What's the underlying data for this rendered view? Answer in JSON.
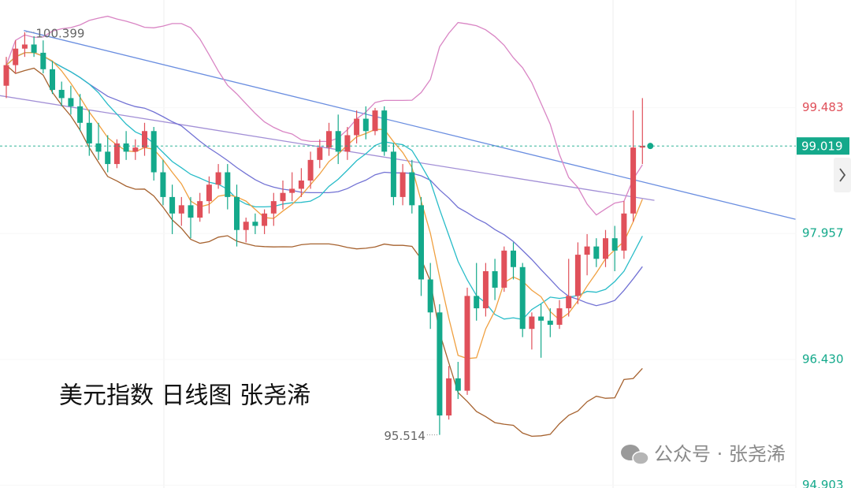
{
  "chart_data": {
    "type": "candlestick",
    "title": "美元指数 日线图 张尧浠",
    "watermark": "公众号 · 张尧浠",
    "open": [
      99.75,
      100.0,
      100.2,
      100.25,
      100.15,
      99.95,
      99.7,
      99.6,
      99.5,
      99.3,
      99.05,
      98.95,
      98.8,
      99.05,
      98.95,
      99.0,
      99.2,
      98.7,
      98.4,
      98.2,
      98.3,
      98.15,
      98.35,
      98.55,
      98.7,
      98.4,
      98.0,
      98.1,
      98.05,
      98.2,
      98.35,
      98.45,
      98.5,
      98.6,
      98.85,
      99.0,
      99.2,
      98.95,
      99.15,
      99.35,
      99.2,
      99.45,
      98.95,
      98.4,
      98.7,
      98.3,
      97.4,
      97.0,
      95.75,
      96.2,
      96.05,
      97.2,
      97.05,
      97.5,
      97.3,
      97.75,
      97.55,
      96.8,
      96.95,
      96.9,
      96.85,
      97.05,
      97.2,
      97.7,
      97.8,
      97.65,
      97.9,
      97.75,
      98.2,
      99.0
    ],
    "high": [
      100.1,
      100.3,
      100.399,
      100.35,
      100.3,
      100.05,
      99.8,
      99.75,
      99.65,
      99.45,
      99.3,
      99.15,
      99.1,
      99.2,
      99.1,
      99.3,
      99.25,
      98.85,
      98.55,
      98.4,
      98.4,
      98.45,
      98.65,
      98.8,
      98.8,
      98.55,
      98.15,
      98.2,
      98.25,
      98.45,
      98.6,
      98.7,
      98.75,
      98.95,
      99.1,
      99.3,
      99.4,
      99.25,
      99.45,
      99.5,
      99.48,
      99.5,
      99.05,
      98.8,
      98.85,
      98.4,
      97.6,
      97.1,
      96.35,
      96.4,
      97.3,
      97.6,
      97.6,
      97.65,
      97.8,
      97.85,
      97.6,
      97.0,
      97.1,
      97.05,
      97.15,
      97.65,
      97.85,
      97.95,
      97.9,
      98.0,
      98.05,
      98.35,
      99.45,
      99.6
    ],
    "low": [
      99.6,
      99.9,
      100.1,
      100.1,
      99.9,
      99.65,
      99.5,
      99.4,
      99.2,
      98.9,
      98.85,
      98.7,
      98.75,
      98.85,
      98.85,
      98.9,
      98.6,
      98.3,
      97.95,
      98.05,
      97.9,
      98.1,
      98.2,
      98.5,
      98.25,
      97.8,
      97.85,
      97.95,
      97.95,
      98.05,
      98.25,
      98.35,
      98.4,
      98.5,
      98.75,
      98.9,
      98.8,
      98.85,
      99.05,
      99.1,
      99.15,
      98.9,
      98.3,
      98.3,
      98.2,
      97.2,
      96.8,
      95.514,
      95.7,
      95.95,
      96.0,
      96.9,
      96.95,
      97.15,
      97.25,
      97.4,
      96.7,
      96.55,
      96.45,
      96.7,
      96.8,
      96.95,
      97.1,
      97.45,
      97.55,
      97.55,
      97.5,
      97.65,
      98.1,
      98.8
    ],
    "close": [
      100.0,
      100.2,
      100.25,
      100.15,
      99.95,
      99.7,
      99.6,
      99.5,
      99.3,
      99.05,
      98.95,
      98.8,
      99.05,
      98.95,
      99.0,
      99.2,
      98.7,
      98.4,
      98.2,
      98.3,
      98.15,
      98.35,
      98.55,
      98.7,
      98.4,
      98.0,
      98.1,
      98.05,
      98.2,
      98.35,
      98.45,
      98.5,
      98.6,
      98.85,
      99.0,
      99.2,
      98.95,
      99.15,
      99.35,
      99.2,
      99.45,
      98.95,
      98.4,
      98.7,
      98.3,
      97.4,
      97.0,
      95.75,
      96.2,
      96.05,
      97.2,
      97.05,
      97.5,
      97.3,
      97.75,
      97.55,
      96.8,
      96.95,
      96.9,
      96.85,
      97.05,
      97.2,
      97.7,
      97.8,
      97.65,
      97.9,
      97.75,
      98.2,
      99.0,
      99.019
    ],
    "up_color": "#e0505a",
    "down_color": "#14a98b",
    "ma_colors": {
      "ma5": "#f0a040",
      "ma10": "#28bcc8",
      "ma20": "#7272d4",
      "upper": "#d985c4",
      "lower": "#a6622f"
    },
    "trendlines": [
      {
        "color": "#6a8ee0",
        "x": [
          1.9,
          85.6
        ],
        "values": [
          100.42,
          98.13
        ]
      },
      {
        "color": "#a28fd6",
        "x": [
          -0.7,
          70.3
        ],
        "values": [
          99.63,
          98.36
        ]
      }
    ],
    "ylim": [
      94.87,
      100.79
    ],
    "yticks": [
      99.483,
      97.957,
      {
        "value": 96.43,
        "label": "96.430"
      },
      94.903
    ],
    "last_price": 99.019,
    "high_label": "100.399",
    "low_label": "95.514"
  }
}
